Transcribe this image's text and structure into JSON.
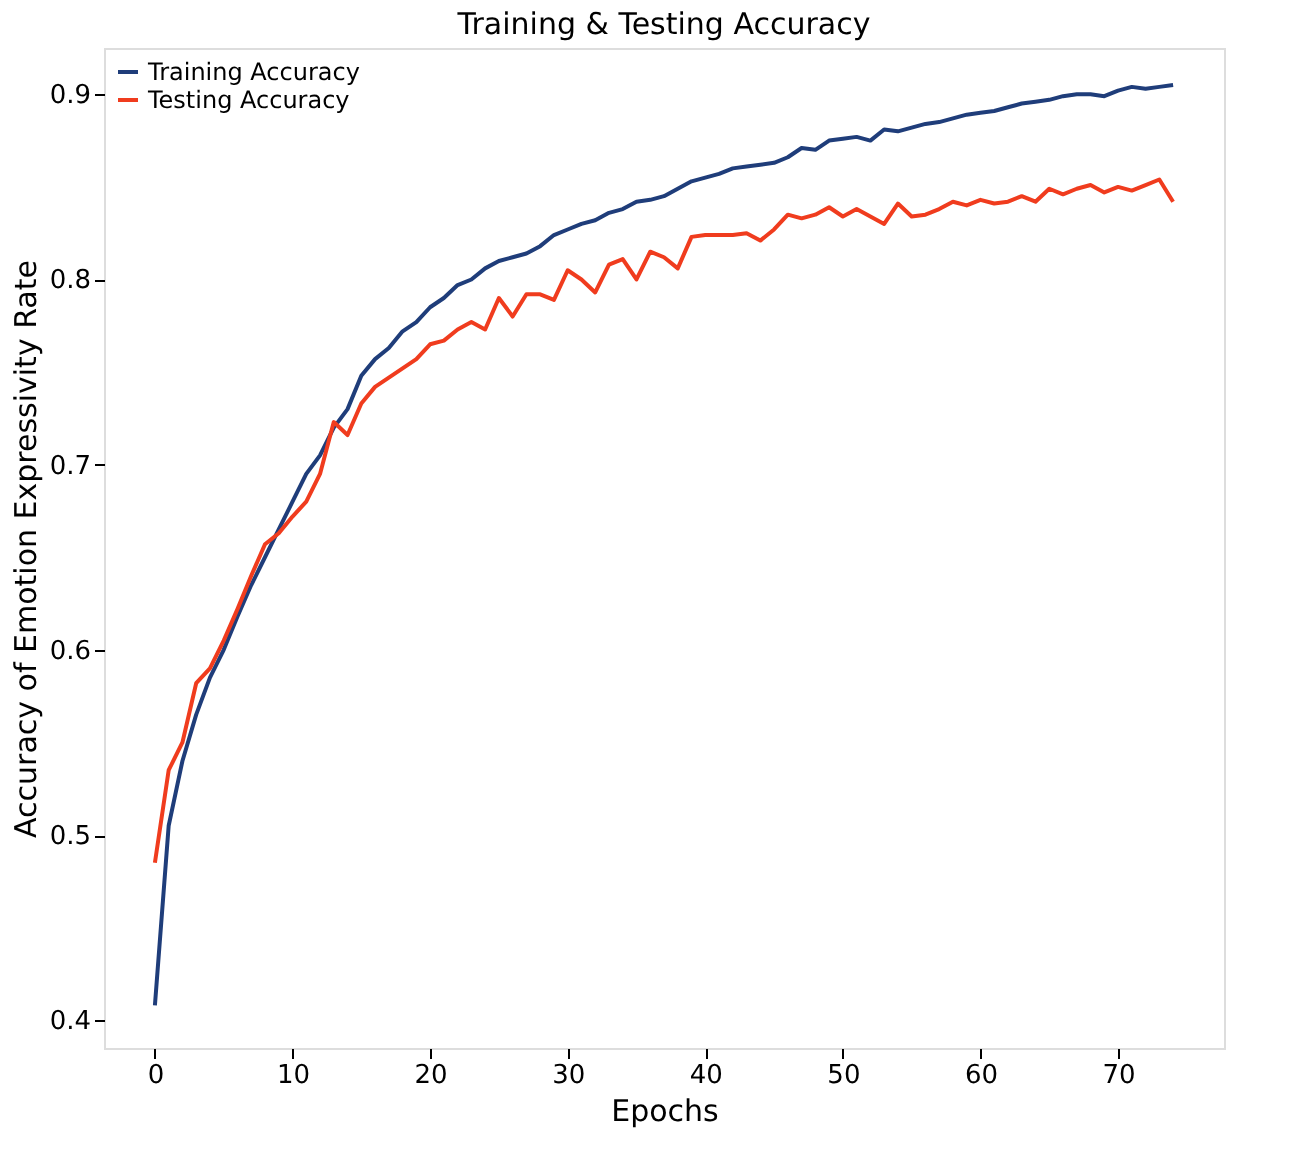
{
  "chart_data": {
    "type": "line",
    "title": "Training & Testing Accuracy",
    "xlabel": "Epochs",
    "ylabel": "Accuracy of Emotion Expressivity Rate",
    "x": [
      0,
      1,
      2,
      3,
      4,
      5,
      6,
      7,
      8,
      9,
      10,
      11,
      12,
      13,
      14,
      15,
      16,
      17,
      18,
      19,
      20,
      21,
      22,
      23,
      24,
      25,
      26,
      27,
      28,
      29,
      30,
      31,
      32,
      33,
      34,
      35,
      36,
      37,
      38,
      39,
      40,
      41,
      42,
      43,
      44,
      45,
      46,
      47,
      48,
      49,
      50,
      51,
      52,
      53,
      54,
      55,
      56,
      57,
      58,
      59,
      60,
      61,
      62,
      63,
      64,
      65,
      66,
      67,
      68,
      69,
      70,
      71,
      72,
      73,
      74
    ],
    "series": [
      {
        "name": "Training Accuracy",
        "color": "#1f3d7a",
        "values": [
          0.408,
          0.505,
          0.54,
          0.565,
          0.585,
          0.6,
          0.618,
          0.635,
          0.65,
          0.665,
          0.68,
          0.695,
          0.705,
          0.72,
          0.73,
          0.748,
          0.757,
          0.763,
          0.772,
          0.777,
          0.785,
          0.79,
          0.797,
          0.8,
          0.806,
          0.81,
          0.812,
          0.814,
          0.818,
          0.824,
          0.827,
          0.83,
          0.832,
          0.836,
          0.838,
          0.842,
          0.843,
          0.845,
          0.849,
          0.853,
          0.855,
          0.857,
          0.86,
          0.861,
          0.862,
          0.863,
          0.866,
          0.871,
          0.87,
          0.875,
          0.876,
          0.877,
          0.875,
          0.881,
          0.88,
          0.882,
          0.884,
          0.885,
          0.887,
          0.889,
          0.89,
          0.891,
          0.893,
          0.895,
          0.896,
          0.897,
          0.899,
          0.9,
          0.9,
          0.899,
          0.902,
          0.904,
          0.903,
          0.904,
          0.905
        ]
      },
      {
        "name": "Testing Accuracy",
        "color": "#f03c1e",
        "values": [
          0.485,
          0.535,
          0.55,
          0.582,
          0.59,
          0.605,
          0.622,
          0.64,
          0.657,
          0.663,
          0.672,
          0.68,
          0.695,
          0.723,
          0.716,
          0.733,
          0.742,
          0.747,
          0.752,
          0.757,
          0.765,
          0.767,
          0.773,
          0.777,
          0.773,
          0.79,
          0.78,
          0.792,
          0.792,
          0.789,
          0.805,
          0.8,
          0.793,
          0.808,
          0.811,
          0.8,
          0.815,
          0.812,
          0.806,
          0.823,
          0.824,
          0.824,
          0.824,
          0.825,
          0.821,
          0.827,
          0.835,
          0.833,
          0.835,
          0.839,
          0.834,
          0.838,
          0.834,
          0.83,
          0.841,
          0.834,
          0.835,
          0.838,
          0.842,
          0.84,
          0.843,
          0.841,
          0.842,
          0.845,
          0.842,
          0.849,
          0.846,
          0.849,
          0.851,
          0.847,
          0.85,
          0.848,
          0.851,
          0.854,
          0.842
        ]
      }
    ],
    "xlim": [
      -3.7,
      77.7
    ],
    "xticks": [
      0,
      10,
      20,
      30,
      40,
      50,
      60,
      70
    ],
    "ylim": [
      0.385,
      0.925
    ],
    "yticks": [
      0.4,
      0.5,
      0.6,
      0.7,
      0.8,
      0.9
    ],
    "legend": "top left",
    "grid": false,
    "marker": "none",
    "line_style": "solid"
  }
}
